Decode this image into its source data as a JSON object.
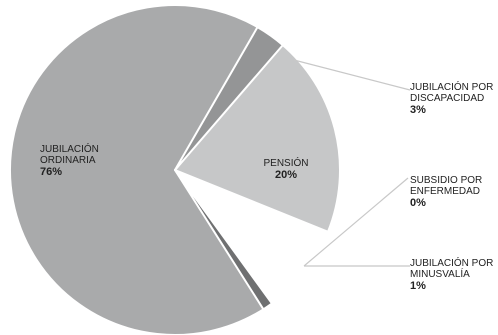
{
  "chart_data": {
    "type": "pie",
    "title": "",
    "series": [
      {
        "values": [
          76,
          20,
          1,
          0,
          3
        ]
      }
    ],
    "slices": [
      {
        "key": "ordinaria",
        "label_lines": [
          "JUBILACIÓN",
          "ORDINARIA"
        ],
        "value_label": "76%",
        "value": 76,
        "color": "#a9aaab"
      },
      {
        "key": "pension",
        "label_lines": [
          "PENSIÓN"
        ],
        "value_label": "20%",
        "value": 20,
        "color": "#c6c7c8"
      },
      {
        "key": "minusvalia",
        "label_lines": [
          "JUBILACIÓN POR",
          "MINUSVALÍA"
        ],
        "value_label": "1%",
        "value": 1,
        "color": "#6f7071"
      },
      {
        "key": "enfermedad",
        "label_lines": [
          "SUBSIDIO POR",
          "ENFERMEDAD"
        ],
        "value_label": "0%",
        "value": 0,
        "color": "#8d8e8f"
      },
      {
        "key": "discapacidad",
        "label_lines": [
          "JUBILACIÓN POR",
          "DISCAPACIDAD"
        ],
        "value_label": "3%",
        "value": 3,
        "color": "#949596"
      }
    ],
    "legend": "callouts-right",
    "leader_color": "#c8c8c8"
  }
}
